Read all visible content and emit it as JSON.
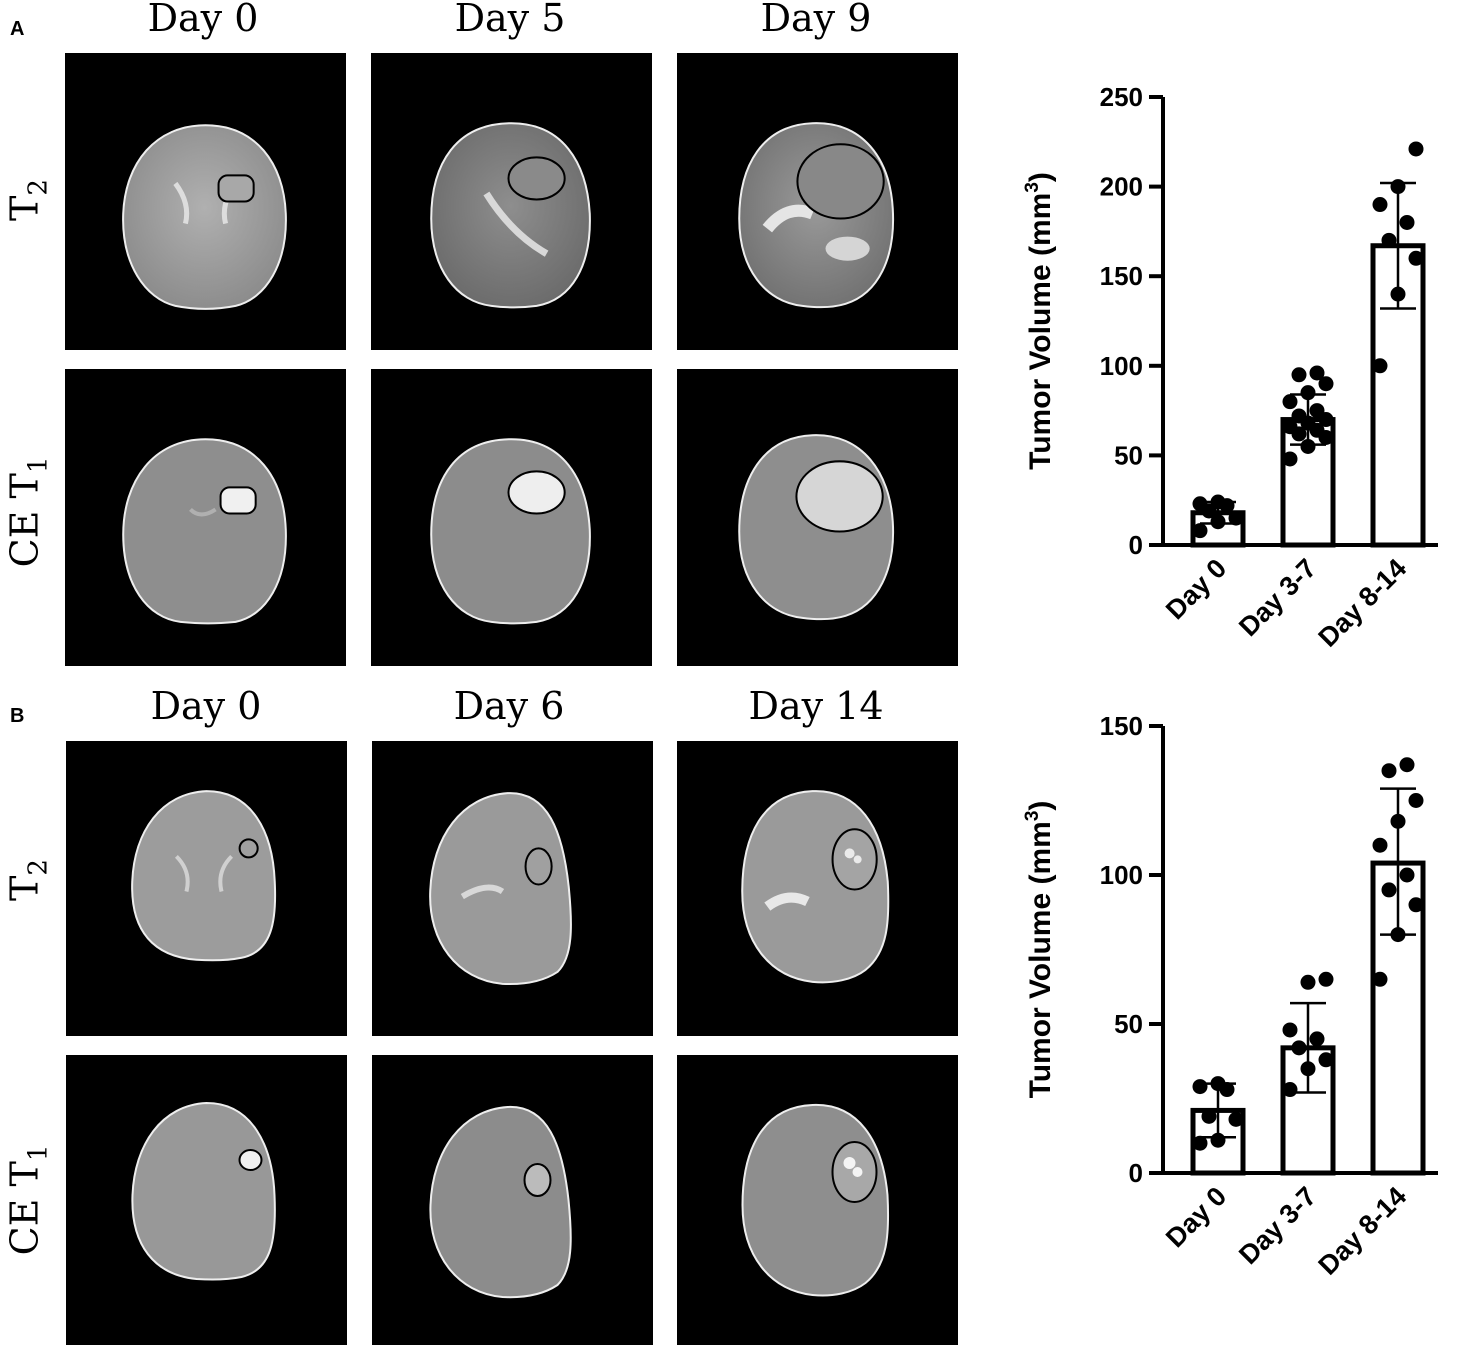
{
  "panels": [
    {
      "letter": "A",
      "columns": [
        "Day 0",
        "Day 5",
        "Day 9"
      ],
      "rows": [
        {
          "main": "T",
          "sub": "2"
        },
        {
          "main": "CE T",
          "sub": "1"
        }
      ]
    },
    {
      "letter": "B",
      "columns": [
        "Day 0",
        "Day 6",
        "Day 14"
      ],
      "rows": [
        {
          "main": "T",
          "sub": "2"
        },
        {
          "main": "CE T",
          "sub": "1"
        }
      ]
    }
  ],
  "chart_data": [
    {
      "type": "bar",
      "panel": "A",
      "ylabel": "Tumor Volume (mm",
      "ylabel_sup": "3",
      "ylabel_close": ")",
      "ylim": [
        0,
        250
      ],
      "yticks": [
        0,
        50,
        100,
        150,
        200,
        250
      ],
      "categories": [
        "Day 0",
        "Day 3-7",
        "Day 8-14"
      ],
      "values": [
        18,
        70,
        167
      ],
      "errors": [
        [
          12,
          24
        ],
        [
          56,
          84
        ],
        [
          132,
          202
        ]
      ],
      "points": [
        [
          8,
          13,
          15,
          19,
          22,
          23,
          24
        ],
        [
          48,
          55,
          60,
          62,
          64,
          66,
          68,
          70,
          72,
          75,
          80,
          85,
          90,
          95,
          96
        ],
        [
          100,
          140,
          160,
          170,
          180,
          190,
          200,
          221
        ]
      ],
      "legend": "none",
      "grid": false
    },
    {
      "type": "bar",
      "panel": "B",
      "ylabel": "Tumor Volume (mm",
      "ylabel_sup": "3",
      "ylabel_close": ")",
      "ylim": [
        0,
        150
      ],
      "yticks": [
        0,
        50,
        100,
        150
      ],
      "categories": [
        "Day 0",
        "Day 3-7",
        "Day 8-14"
      ],
      "values": [
        21,
        42,
        104
      ],
      "errors": [
        [
          12,
          30
        ],
        [
          27,
          57
        ],
        [
          80,
          129
        ]
      ],
      "points": [
        [
          10,
          11,
          18,
          19,
          28,
          29,
          30
        ],
        [
          28,
          35,
          38,
          42,
          45,
          48,
          64,
          65
        ],
        [
          65,
          80,
          90,
          95,
          100,
          110,
          118,
          125,
          135,
          137
        ]
      ],
      "legend": "none",
      "grid": false
    }
  ],
  "colors": {
    "ink": "#000000",
    "background": "#ffffff",
    "scan_background": "#000000"
  }
}
